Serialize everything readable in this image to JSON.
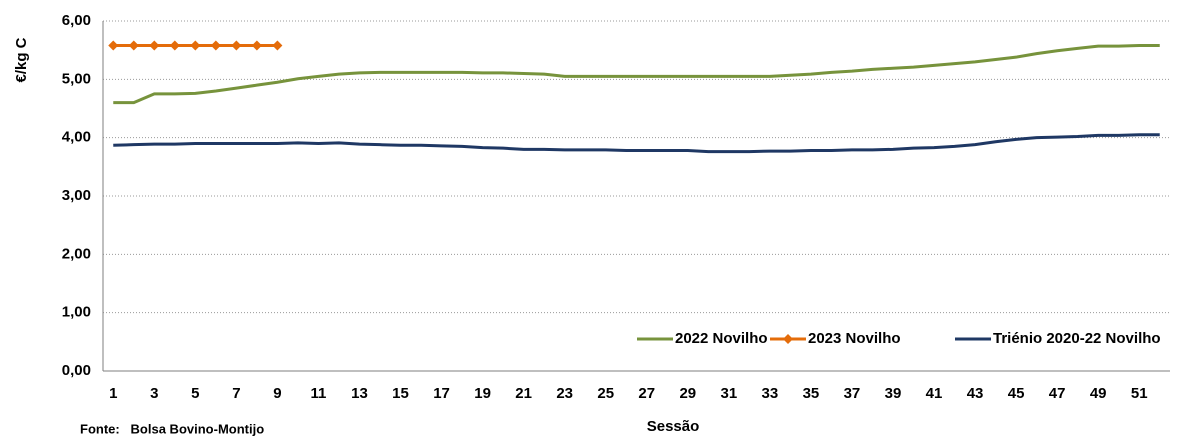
{
  "chart_data": {
    "type": "line",
    "y_label": "€/kg C",
    "x_label": "Sessão",
    "source": "Fonte:   Bolsa Bovino-Montijo",
    "categories": [
      "1",
      null,
      "3",
      null,
      "5",
      null,
      "7",
      null,
      "9",
      null,
      "11",
      null,
      "13",
      null,
      "15",
      null,
      "17",
      null,
      "19",
      null,
      "21",
      null,
      "23",
      null,
      "25",
      null,
      "27",
      null,
      "29",
      null,
      "31",
      null,
      "33",
      null,
      "35",
      null,
      "37",
      null,
      "39",
      null,
      "41",
      null,
      "43",
      null,
      "45",
      null,
      "47",
      null,
      "49",
      null,
      "51",
      null
    ],
    "series": [
      {
        "name": "2022 Novilho",
        "color": "#77933c",
        "marker": false,
        "values": [
          4.6,
          4.6,
          4.75,
          4.75,
          4.76,
          4.8,
          4.85,
          4.9,
          4.95,
          5.01,
          5.05,
          5.09,
          5.11,
          5.12,
          5.12,
          5.12,
          5.12,
          5.12,
          5.11,
          5.11,
          5.1,
          5.09,
          5.05,
          5.05,
          5.05,
          5.05,
          5.05,
          5.05,
          5.05,
          5.05,
          5.05,
          5.05,
          5.05,
          5.07,
          5.09,
          5.12,
          5.14,
          5.17,
          5.19,
          5.21,
          5.24,
          5.27,
          5.3,
          5.34,
          5.38,
          5.44,
          5.49,
          5.53,
          5.57,
          5.57,
          5.58,
          5.58
        ]
      },
      {
        "name": "2023 Novilho",
        "color": "#e46c0a",
        "marker": true,
        "values": [
          5.58,
          5.58,
          5.58,
          5.58,
          5.58,
          5.58,
          5.58,
          5.58,
          5.58,
          null,
          null,
          null,
          null,
          null,
          null,
          null,
          null,
          null,
          null,
          null,
          null,
          null,
          null,
          null,
          null,
          null,
          null,
          null,
          null,
          null,
          null,
          null,
          null,
          null,
          null,
          null,
          null,
          null,
          null,
          null,
          null,
          null,
          null,
          null,
          null,
          null,
          null,
          null,
          null,
          null,
          null,
          null
        ]
      },
      {
        "name": "Triénio 2020-22 Novilho",
        "color": "#1f3864",
        "marker": false,
        "values": [
          3.87,
          3.88,
          3.89,
          3.89,
          3.9,
          3.9,
          3.9,
          3.9,
          3.9,
          3.91,
          3.9,
          3.91,
          3.89,
          3.88,
          3.87,
          3.87,
          3.86,
          3.85,
          3.83,
          3.82,
          3.8,
          3.8,
          3.79,
          3.79,
          3.79,
          3.78,
          3.78,
          3.78,
          3.78,
          3.76,
          3.76,
          3.76,
          3.77,
          3.77,
          3.78,
          3.78,
          3.79,
          3.79,
          3.8,
          3.82,
          3.83,
          3.85,
          3.88,
          3.93,
          3.97,
          4.0,
          4.01,
          4.02,
          4.04,
          4.04,
          4.05,
          4.05
        ]
      }
    ],
    "ylim": [
      0,
      6
    ],
    "yticks": [
      {
        "value": 0,
        "label": "0,00"
      },
      {
        "value": 1,
        "label": "1,00"
      },
      {
        "value": 2,
        "label": "2,00"
      },
      {
        "value": 3,
        "label": "3,00"
      },
      {
        "value": 4,
        "label": "4,00"
      },
      {
        "value": 5,
        "label": "5,00"
      },
      {
        "value": 6,
        "label": "6,00"
      }
    ],
    "grid": true,
    "legend": "lower right"
  }
}
